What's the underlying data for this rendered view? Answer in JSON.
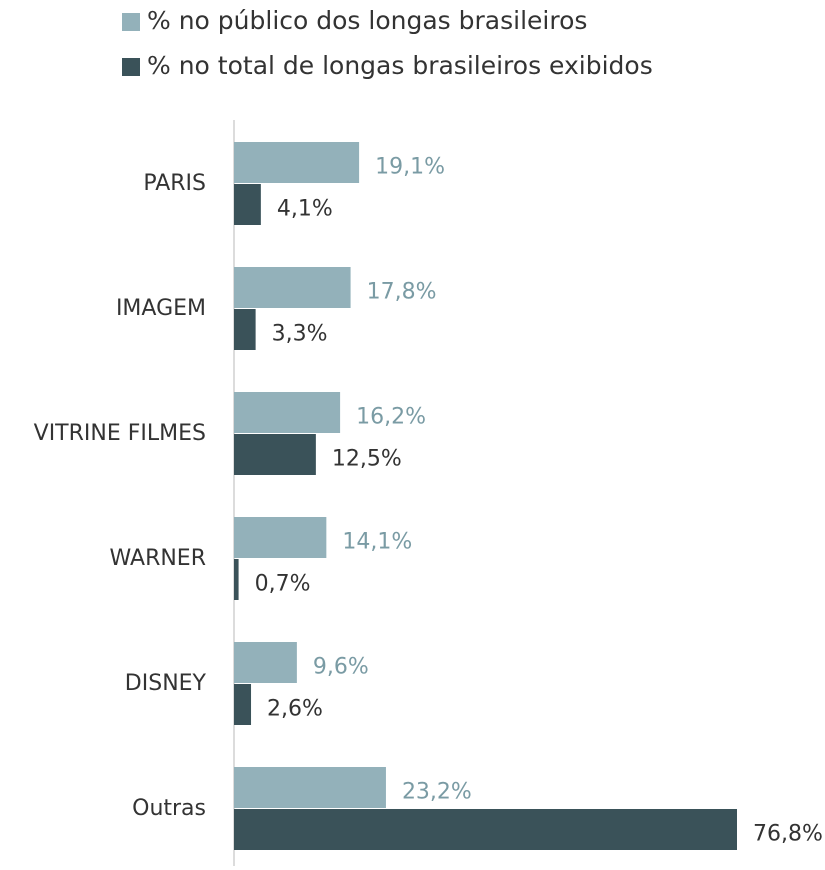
{
  "chart_data": {
    "type": "barh",
    "categories": [
      "PARIS",
      "IMAGEM",
      "VITRINE FILMES",
      "WARNER",
      "DISNEY",
      "Outras"
    ],
    "series": [
      {
        "name": "% no público dos longas brasileiros",
        "color": "#93b1ba",
        "label_color": "#7a9ba4",
        "values": [
          19.1,
          17.8,
          16.2,
          14.1,
          9.6,
          23.2
        ],
        "value_labels": [
          "19,1%",
          "17,8%",
          "16,2%",
          "14,1%",
          "9,6%",
          "23,2%"
        ]
      },
      {
        "name": "% no total de longas brasileiros exibidos",
        "color": "#3a5259",
        "label_color": "#333333",
        "values": [
          4.1,
          3.3,
          12.5,
          0.7,
          2.6,
          76.8
        ],
        "value_labels": [
          "4,1%",
          "3,3%",
          "12,5%",
          "0,7%",
          "2,6%",
          "76,8%"
        ]
      }
    ],
    "legend": "top"
  }
}
